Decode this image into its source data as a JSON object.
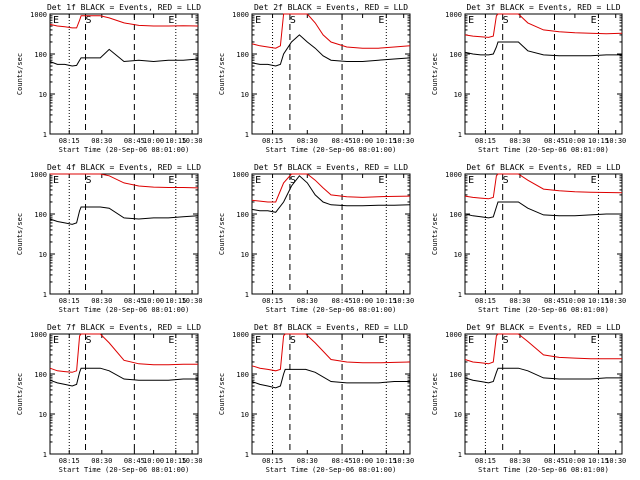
{
  "axis": {
    "ylabel": "Counts/sec",
    "xlabel": "Start Time (20-Sep-06 08:01:00)",
    "y_ticks": [
      "1",
      "10",
      "100",
      "1000"
    ],
    "x_ticks": [
      "08:15",
      "08:30",
      "08:45",
      "10:00",
      "10:15",
      "10:30"
    ]
  },
  "colors": {
    "events": "#000000",
    "lld": "#dd0000"
  },
  "chart_data": [
    {
      "type": "line",
      "title": "Det 1f BLACK = Events, RED = LLD",
      "markers": [
        "E",
        "S",
        "E"
      ],
      "ylim": [
        1,
        1000
      ],
      "yscale": "log",
      "x": [
        0,
        0.05,
        0.1,
        0.15,
        0.18,
        0.2,
        0.21,
        0.25,
        0.3,
        0.32,
        0.34,
        0.4,
        0.5,
        0.6,
        0.7,
        0.8,
        0.9,
        1.0
      ],
      "series": [
        {
          "name": "Events",
          "color": "#000000",
          "values": [
            65,
            55,
            55,
            50,
            52,
            70,
            80,
            80,
            80,
            80,
            80,
            130,
            65,
            70,
            65,
            70,
            70,
            75
          ]
        },
        {
          "name": "LLD",
          "color": "#dd0000",
          "values": [
            550,
            500,
            480,
            450,
            450,
            700,
            900,
            900,
            900,
            900,
            900,
            800,
            600,
            520,
            500,
            500,
            510,
            500
          ]
        }
      ]
    },
    {
      "type": "line",
      "title": "Det 2f BLACK = Events, RED = LLD",
      "markers": [
        "E",
        "S",
        "E"
      ],
      "ylim": [
        1,
        1000
      ],
      "yscale": "log",
      "x": [
        0,
        0.05,
        0.1,
        0.15,
        0.18,
        0.2,
        0.25,
        0.3,
        0.35,
        0.4,
        0.45,
        0.5,
        0.6,
        0.7,
        0.8,
        0.9,
        1.0
      ],
      "series": [
        {
          "name": "Events",
          "color": "#000000",
          "values": [
            60,
            55,
            55,
            50,
            55,
            100,
            200,
            300,
            200,
            140,
            90,
            70,
            65,
            65,
            70,
            75,
            80
          ]
        },
        {
          "name": "LLD",
          "color": "#dd0000",
          "values": [
            180,
            160,
            150,
            140,
            160,
            1000,
            1000,
            1000,
            1000,
            600,
            300,
            200,
            150,
            140,
            140,
            150,
            160
          ]
        }
      ]
    },
    {
      "type": "line",
      "title": "Det 3f BLACK = Events, RED = LLD",
      "markers": [
        "E",
        "S",
        "E"
      ],
      "ylim": [
        1,
        1000
      ],
      "yscale": "log",
      "x": [
        0,
        0.05,
        0.1,
        0.15,
        0.18,
        0.2,
        0.21,
        0.25,
        0.3,
        0.34,
        0.4,
        0.5,
        0.6,
        0.7,
        0.8,
        0.9,
        1.0
      ],
      "series": [
        {
          "name": "Events",
          "color": "#000000",
          "values": [
            110,
            100,
            95,
            95,
            100,
            150,
            200,
            200,
            200,
            200,
            120,
            95,
            90,
            90,
            90,
            95,
            95
          ]
        },
        {
          "name": "LLD",
          "color": "#dd0000",
          "values": [
            300,
            280,
            270,
            260,
            280,
            900,
            1000,
            1000,
            1000,
            1000,
            600,
            400,
            360,
            340,
            330,
            320,
            330
          ]
        }
      ]
    },
    {
      "type": "line",
      "title": "Det 4f BLACK = Events, RED = LLD",
      "markers": [
        "E",
        "S",
        "E"
      ],
      "ylim": [
        1,
        1000
      ],
      "yscale": "log",
      "x": [
        0,
        0.05,
        0.1,
        0.15,
        0.18,
        0.2,
        0.21,
        0.25,
        0.3,
        0.34,
        0.4,
        0.5,
        0.6,
        0.7,
        0.8,
        0.9,
        1.0
      ],
      "series": [
        {
          "name": "Events",
          "color": "#000000",
          "values": [
            75,
            65,
            60,
            55,
            60,
            120,
            150,
            150,
            150,
            150,
            140,
            80,
            75,
            80,
            80,
            85,
            90
          ]
        },
        {
          "name": "LLD",
          "color": "#dd0000",
          "values": [
            1000,
            1000,
            1000,
            1000,
            1000,
            1000,
            1000,
            1000,
            1000,
            1000,
            900,
            600,
            500,
            470,
            460,
            460,
            450
          ]
        }
      ]
    },
    {
      "type": "line",
      "title": "Det 5f BLACK = Events, RED = LLD",
      "markers": [
        "E",
        "S",
        "E"
      ],
      "ylim": [
        1,
        1000
      ],
      "yscale": "log",
      "x": [
        0,
        0.05,
        0.1,
        0.15,
        0.2,
        0.25,
        0.3,
        0.35,
        0.4,
        0.45,
        0.5,
        0.6,
        0.7,
        0.8,
        0.9,
        1.0
      ],
      "series": [
        {
          "name": "Events",
          "color": "#000000",
          "values": [
            130,
            120,
            120,
            110,
            200,
            500,
            900,
            600,
            300,
            200,
            170,
            160,
            160,
            165,
            165,
            170
          ]
        },
        {
          "name": "LLD",
          "color": "#dd0000",
          "values": [
            220,
            210,
            200,
            200,
            600,
            1000,
            1000,
            1000,
            700,
            450,
            300,
            270,
            260,
            270,
            275,
            280
          ]
        }
      ]
    },
    {
      "type": "line",
      "title": "Det 6f BLACK = Events, RED = LLD",
      "markers": [
        "E",
        "S",
        "E"
      ],
      "ylim": [
        1,
        1000
      ],
      "yscale": "log",
      "x": [
        0,
        0.05,
        0.1,
        0.15,
        0.18,
        0.2,
        0.21,
        0.25,
        0.3,
        0.34,
        0.4,
        0.5,
        0.6,
        0.7,
        0.8,
        0.9,
        1.0
      ],
      "series": [
        {
          "name": "Events",
          "color": "#000000",
          "values": [
            100,
            90,
            85,
            80,
            85,
            150,
            200,
            200,
            200,
            200,
            140,
            95,
            90,
            90,
            95,
            100,
            100
          ]
        },
        {
          "name": "LLD",
          "color": "#dd0000",
          "values": [
            280,
            260,
            250,
            240,
            260,
            900,
            1000,
            1000,
            1000,
            1000,
            700,
            420,
            380,
            360,
            350,
            345,
            340
          ]
        }
      ]
    },
    {
      "type": "line",
      "title": "Det 7f BLACK = Events, RED = LLD",
      "markers": [
        "E",
        "S",
        "E"
      ],
      "ylim": [
        1,
        1000
      ],
      "yscale": "log",
      "x": [
        0,
        0.05,
        0.1,
        0.15,
        0.18,
        0.2,
        0.21,
        0.25,
        0.3,
        0.34,
        0.4,
        0.5,
        0.6,
        0.7,
        0.8,
        0.9,
        1.0
      ],
      "series": [
        {
          "name": "Events",
          "color": "#000000",
          "values": [
            70,
            60,
            55,
            50,
            55,
            110,
            140,
            140,
            140,
            140,
            120,
            75,
            70,
            70,
            70,
            75,
            75
          ]
        },
        {
          "name": "LLD",
          "color": "#dd0000",
          "values": [
            140,
            120,
            115,
            110,
            120,
            900,
            1000,
            1000,
            1000,
            1000,
            600,
            220,
            180,
            170,
            170,
            175,
            175
          ]
        }
      ]
    },
    {
      "type": "line",
      "title": "Det 8f BLACK = Events, RED = LLD",
      "markers": [
        "E",
        "S",
        "E"
      ],
      "ylim": [
        1,
        1000
      ],
      "yscale": "log",
      "x": [
        0,
        0.05,
        0.1,
        0.15,
        0.18,
        0.2,
        0.21,
        0.25,
        0.3,
        0.34,
        0.4,
        0.5,
        0.6,
        0.7,
        0.8,
        0.9,
        1.0
      ],
      "series": [
        {
          "name": "Events",
          "color": "#000000",
          "values": [
            65,
            55,
            50,
            45,
            50,
            100,
            130,
            130,
            130,
            130,
            110,
            65,
            60,
            60,
            60,
            65,
            65
          ]
        },
        {
          "name": "LLD",
          "color": "#dd0000",
          "values": [
            160,
            140,
            130,
            120,
            130,
            900,
            1000,
            1000,
            1000,
            1000,
            600,
            230,
            200,
            190,
            190,
            195,
            200
          ]
        }
      ]
    },
    {
      "type": "line",
      "title": "Det 9f BLACK = Events, RED = LLD",
      "markers": [
        "E",
        "S",
        "E"
      ],
      "ylim": [
        1,
        1000
      ],
      "yscale": "log",
      "x": [
        0,
        0.05,
        0.1,
        0.15,
        0.18,
        0.2,
        0.21,
        0.25,
        0.3,
        0.34,
        0.4,
        0.5,
        0.6,
        0.7,
        0.8,
        0.9,
        1.0
      ],
      "series": [
        {
          "name": "Events",
          "color": "#000000",
          "values": [
            80,
            70,
            65,
            60,
            65,
            110,
            140,
            140,
            140,
            140,
            120,
            80,
            75,
            75,
            75,
            80,
            80
          ]
        },
        {
          "name": "LLD",
          "color": "#dd0000",
          "values": [
            230,
            200,
            190,
            180,
            200,
            900,
            1000,
            1000,
            1000,
            1000,
            650,
            300,
            260,
            250,
            240,
            240,
            240
          ]
        }
      ]
    }
  ]
}
